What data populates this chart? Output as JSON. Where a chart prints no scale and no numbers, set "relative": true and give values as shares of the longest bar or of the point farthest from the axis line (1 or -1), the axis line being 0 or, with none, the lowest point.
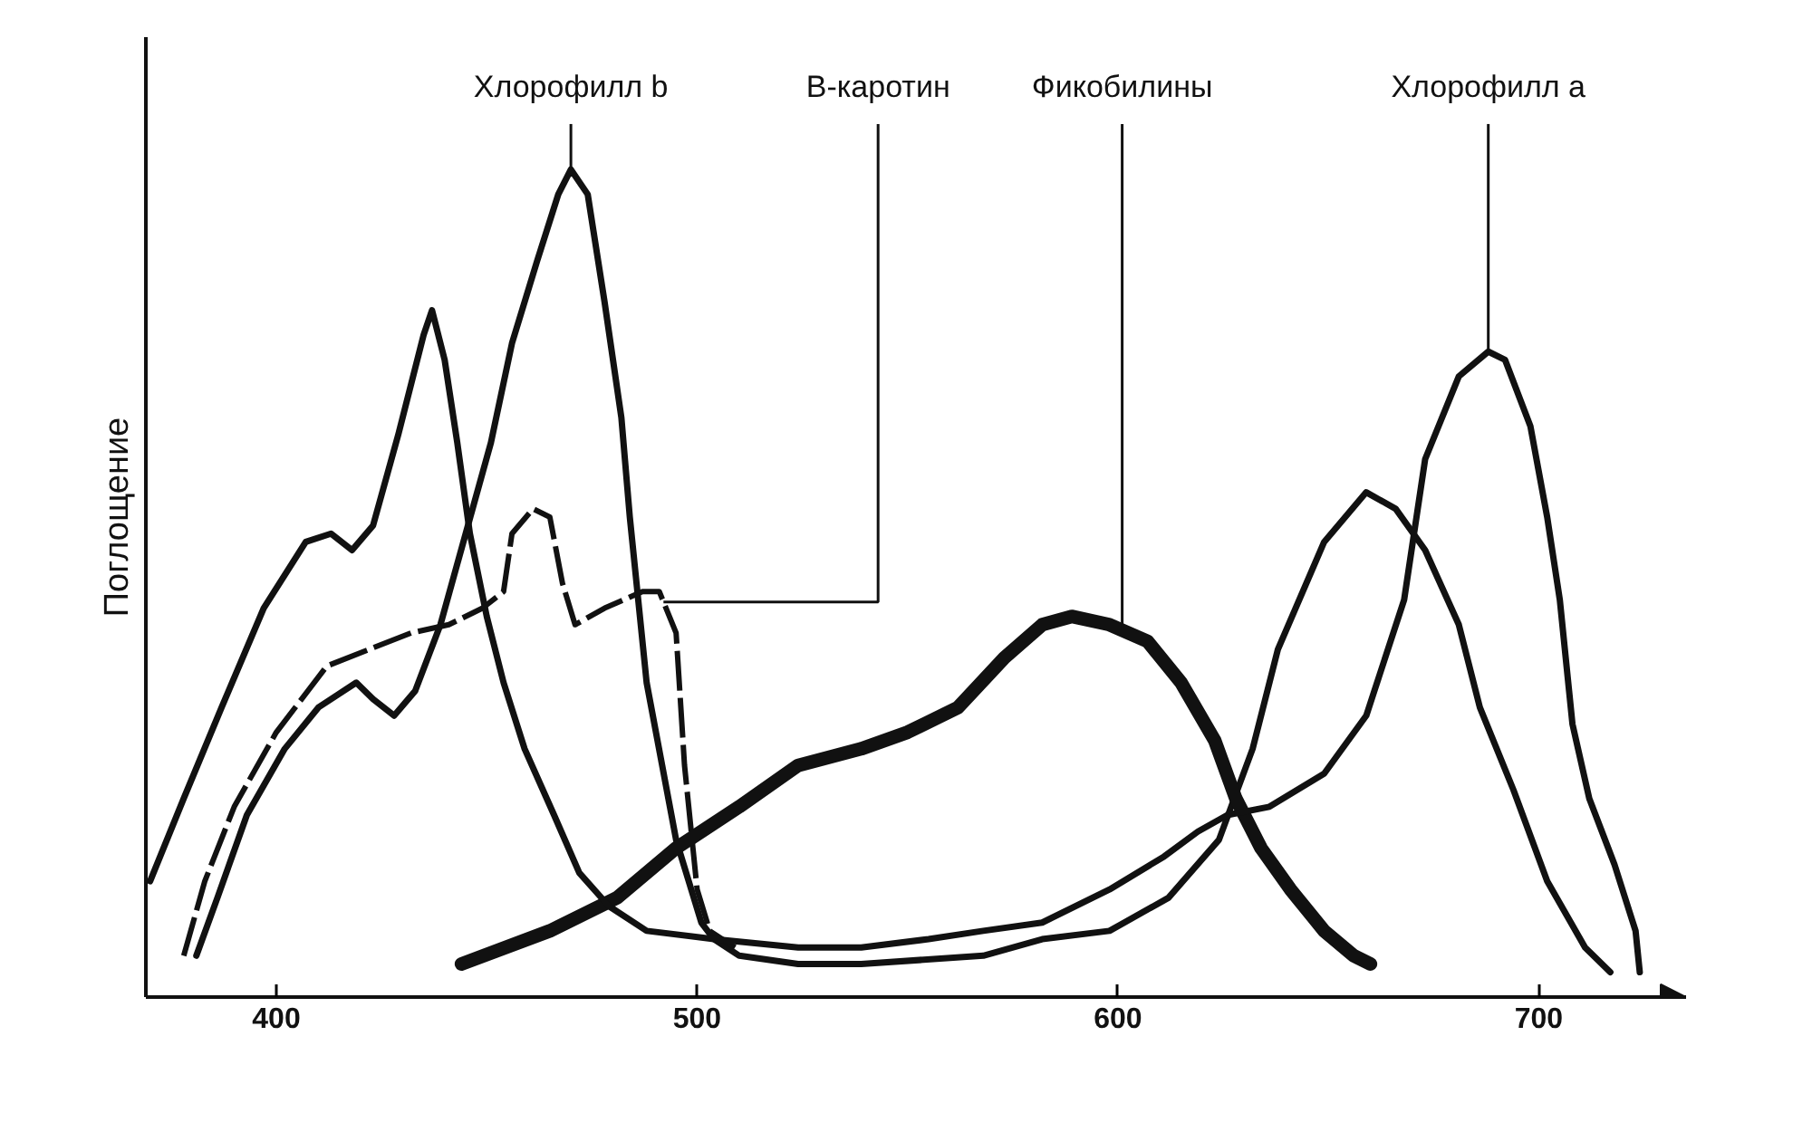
{
  "chart_data": {
    "type": "line",
    "relative": true,
    "ylabel": "Поглощение",
    "xlim": [
      369,
      735
    ],
    "xticks": [
      400,
      500,
      600,
      700
    ],
    "series": [
      {
        "name": "Хлорофилл b",
        "color": "#111111",
        "x": [
          381,
          386,
          393,
          402,
          410,
          419,
          423,
          428,
          433,
          439,
          445,
          451,
          456,
          462,
          467,
          470,
          474,
          478,
          482,
          484,
          488,
          495,
          501,
          504,
          510,
          524,
          539,
          568,
          582,
          598,
          612,
          624,
          632,
          638,
          649,
          659,
          666,
          673,
          681,
          686,
          694,
          702,
          711,
          717
        ],
        "values": [
          0.05,
          0.12,
          0.22,
          0.3,
          0.35,
          0.38,
          0.36,
          0.34,
          0.37,
          0.45,
          0.56,
          0.67,
          0.79,
          0.89,
          0.97,
          1.0,
          0.97,
          0.84,
          0.7,
          0.58,
          0.38,
          0.19,
          0.09,
          0.07,
          0.05,
          0.04,
          0.04,
          0.05,
          0.07,
          0.08,
          0.12,
          0.19,
          0.3,
          0.42,
          0.55,
          0.61,
          0.59,
          0.54,
          0.45,
          0.35,
          0.25,
          0.14,
          0.06,
          0.03
        ]
      },
      {
        "name": "В-каротин",
        "color": "#111111",
        "line_style": "dashed",
        "x": [
          378,
          383,
          390,
          400,
          412,
          422,
          432,
          441,
          449,
          454,
          456,
          461,
          465,
          468,
          471,
          478,
          487,
          491,
          495,
          497,
          500,
          503,
          509
        ],
        "values": [
          0.05,
          0.14,
          0.23,
          0.32,
          0.4,
          0.42,
          0.44,
          0.45,
          0.47,
          0.49,
          0.56,
          0.59,
          0.58,
          0.5,
          0.45,
          0.47,
          0.49,
          0.49,
          0.44,
          0.28,
          0.13,
          0.08,
          0.06
        ]
      },
      {
        "name": "Фикобилины",
        "color": "#111111",
        "x": [
          444,
          465,
          481,
          495,
          510,
          524,
          539,
          550,
          562,
          573,
          582,
          589,
          598,
          607,
          615,
          623,
          628,
          634,
          641,
          649,
          656,
          660
        ],
        "values": [
          0.04,
          0.08,
          0.12,
          0.18,
          0.23,
          0.28,
          0.3,
          0.32,
          0.35,
          0.41,
          0.45,
          0.46,
          0.45,
          0.43,
          0.38,
          0.31,
          0.24,
          0.18,
          0.13,
          0.08,
          0.05,
          0.04
        ]
      },
      {
        "name": "Хлорофилл а",
        "color": "#111111",
        "x": [
          370,
          378,
          387,
          397,
          407,
          413,
          418,
          423,
          429,
          435,
          437,
          440,
          443,
          446,
          450,
          454,
          459,
          466,
          472,
          479,
          488,
          504,
          524,
          539,
          555,
          568,
          582,
          598,
          611,
          619,
          626,
          636,
          649,
          659,
          668,
          673,
          681,
          688,
          692,
          698,
          702,
          705,
          708,
          712,
          718,
          723,
          724
        ],
        "values": [
          0.14,
          0.24,
          0.35,
          0.47,
          0.55,
          0.56,
          0.54,
          0.57,
          0.68,
          0.8,
          0.83,
          0.77,
          0.67,
          0.56,
          0.46,
          0.38,
          0.3,
          0.22,
          0.15,
          0.11,
          0.08,
          0.07,
          0.06,
          0.06,
          0.07,
          0.08,
          0.09,
          0.13,
          0.17,
          0.2,
          0.22,
          0.23,
          0.27,
          0.34,
          0.48,
          0.65,
          0.75,
          0.78,
          0.77,
          0.69,
          0.58,
          0.48,
          0.33,
          0.24,
          0.16,
          0.08,
          0.03
        ]
      }
    ]
  }
}
